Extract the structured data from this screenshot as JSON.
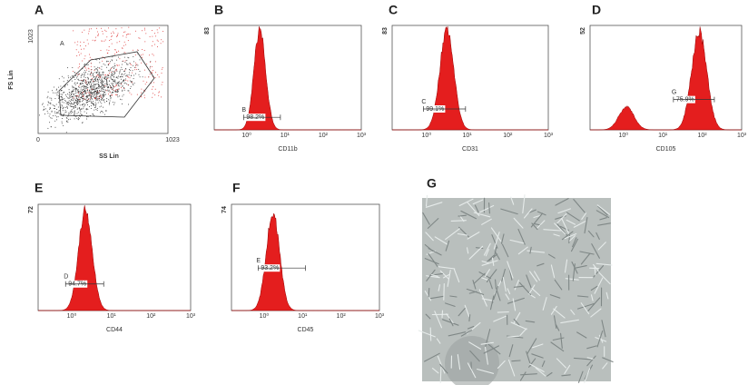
{
  "panels": [
    {
      "letter": "A",
      "y_label": "FS Lin",
      "x_label": "SS Lin",
      "y_max": "1023",
      "x_min": "0",
      "x_max": "1023",
      "gate": "A"
    },
    {
      "letter": "B",
      "y_max": "83",
      "x_label": "CD11b",
      "gate": "B",
      "percent": "98.2%",
      "x_ticks": [
        "10⁰",
        "10¹",
        "10²",
        "10³"
      ]
    },
    {
      "letter": "C",
      "y_max": "83",
      "x_label": "CD31",
      "gate": "C",
      "percent": "99.1%",
      "x_ticks": [
        "10⁰",
        "10¹",
        "10²",
        "10³"
      ]
    },
    {
      "letter": "D",
      "y_max": "52",
      "x_label": "CD105",
      "gate": "G",
      "percent": "75.9%",
      "x_ticks": [
        "10⁰",
        "10¹",
        "10²",
        "10³"
      ]
    },
    {
      "letter": "E",
      "y_max": "72",
      "x_label": "CD44",
      "gate": "D",
      "percent": "94.7%",
      "x_ticks": [
        "10⁰",
        "10¹",
        "10²",
        "10³"
      ]
    },
    {
      "letter": "F",
      "y_max": "74",
      "x_label": "CD45",
      "gate": "E",
      "percent": "93.2%",
      "x_ticks": [
        "10⁰",
        "10¹",
        "10²",
        "10³"
      ]
    },
    {
      "letter": "G"
    }
  ]
}
